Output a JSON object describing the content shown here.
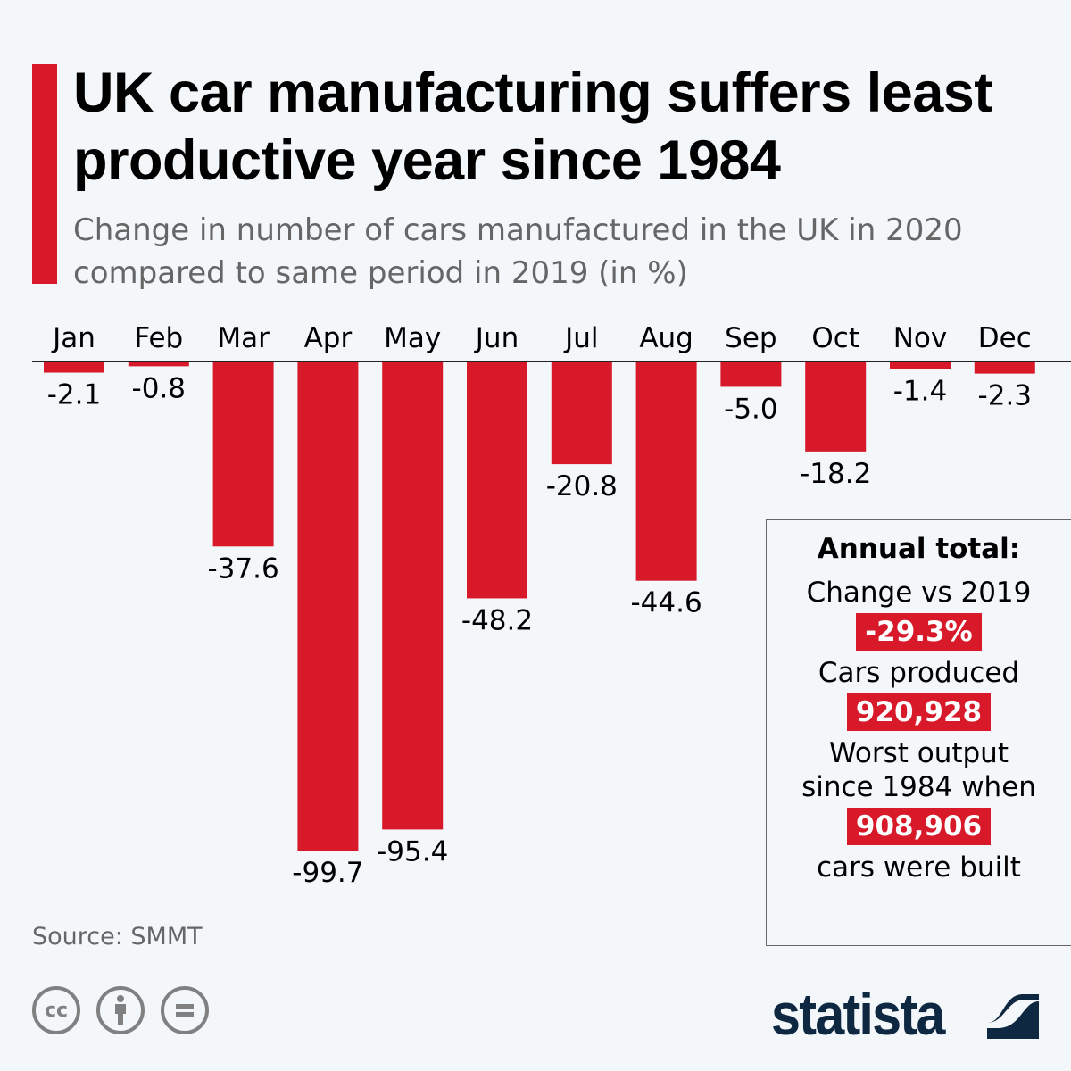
{
  "header": {
    "title": "UK car manufacturing suffers least productive year since 1984",
    "subtitle": "Change in number of cars manufactured in the UK in 2020 compared to same period in 2019 (in %)"
  },
  "chart_data": {
    "type": "bar",
    "title": "UK car manufacturing suffers least productive year since 1984",
    "subtitle": "Change in number of cars manufactured in the UK in 2020 compared to same period in 2019 (in %)",
    "categories": [
      "Jan",
      "Feb",
      "Mar",
      "Apr",
      "May",
      "Jun",
      "Jul",
      "Aug",
      "Sep",
      "Oct",
      "Nov",
      "Dec"
    ],
    "values": [
      -2.1,
      -0.8,
      -37.6,
      -99.7,
      -95.4,
      -48.2,
      -20.8,
      -44.6,
      -5.0,
      -18.2,
      -1.4,
      -2.3
    ],
    "labels": [
      "-2.1",
      "-0.8",
      "-37.6",
      "-99.7",
      "-95.4",
      "-48.2",
      "-20.8",
      "-44.6",
      "-5.0",
      "-18.2",
      "-1.4",
      "-2.3"
    ],
    "xlabel": "",
    "ylabel": "",
    "ylim": [
      -100,
      0
    ],
    "grid": false,
    "x_axis_position": "top",
    "bar_color": "#d7192a"
  },
  "annual": {
    "heading": "Annual total:",
    "change_label": "Change vs 2019",
    "change_value": "-29.3%",
    "produced_label": "Cars produced",
    "produced_value": "920,928",
    "worst_label_1": "Worst output",
    "worst_label_2": "since 1984 when",
    "worst_value": "908,906",
    "worst_label_3": "cars were built"
  },
  "footer": {
    "source": "Source: SMMT",
    "logo": "statista",
    "license_icons": [
      "cc-icon",
      "attribution-icon",
      "no-derivatives-icon"
    ]
  },
  "colors": {
    "accent": "#d7192a",
    "brand": "#0e2841",
    "background": "#f4f7fa"
  }
}
